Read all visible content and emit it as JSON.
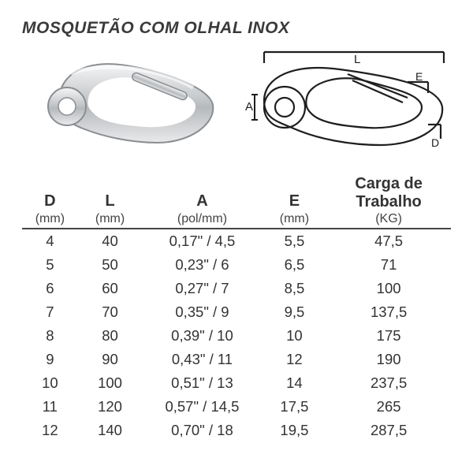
{
  "title": "MOSQUETÃO COM OLHAL INOX",
  "diagram_labels": {
    "L": "L",
    "A": "A",
    "D": "D",
    "E": "E"
  },
  "table": {
    "columns": [
      {
        "label": "D",
        "unit": "(mm)"
      },
      {
        "label": "L",
        "unit": "(mm)"
      },
      {
        "label": "A",
        "unit": "(pol/mm)"
      },
      {
        "label": "E",
        "unit": "(mm)"
      },
      {
        "label_top": "Carga de",
        "label_bot": "Trabalho",
        "unit": "(KG)"
      }
    ],
    "rows": [
      [
        "4",
        "40",
        "0,17\" / 4,5",
        "5,5",
        "47,5"
      ],
      [
        "5",
        "50",
        "0,23\" / 6",
        "6,5",
        "71"
      ],
      [
        "6",
        "60",
        "0,27\" / 7",
        "8,5",
        "100"
      ],
      [
        "7",
        "70",
        "0,35\" / 9",
        "9,5",
        "137,5"
      ],
      [
        "8",
        "80",
        "0,39\" / 10",
        "10",
        "175"
      ],
      [
        "9",
        "90",
        "0,43\" / 11",
        "12",
        "190"
      ],
      [
        "10",
        "100",
        "0,51\" / 13",
        "14",
        "237,5"
      ],
      [
        "11",
        "120",
        "0,57\" / 14,5",
        "17,5",
        "265"
      ],
      [
        "12",
        "140",
        "0,70\" / 18",
        "19,5",
        "287,5"
      ]
    ]
  },
  "colors": {
    "text": "#333333",
    "rule": "#444444",
    "bg": "#ffffff",
    "photo_fill": "#d0d2d4",
    "photo_shine": "#f4f5f6",
    "diag_stroke": "#1e1e1e"
  }
}
